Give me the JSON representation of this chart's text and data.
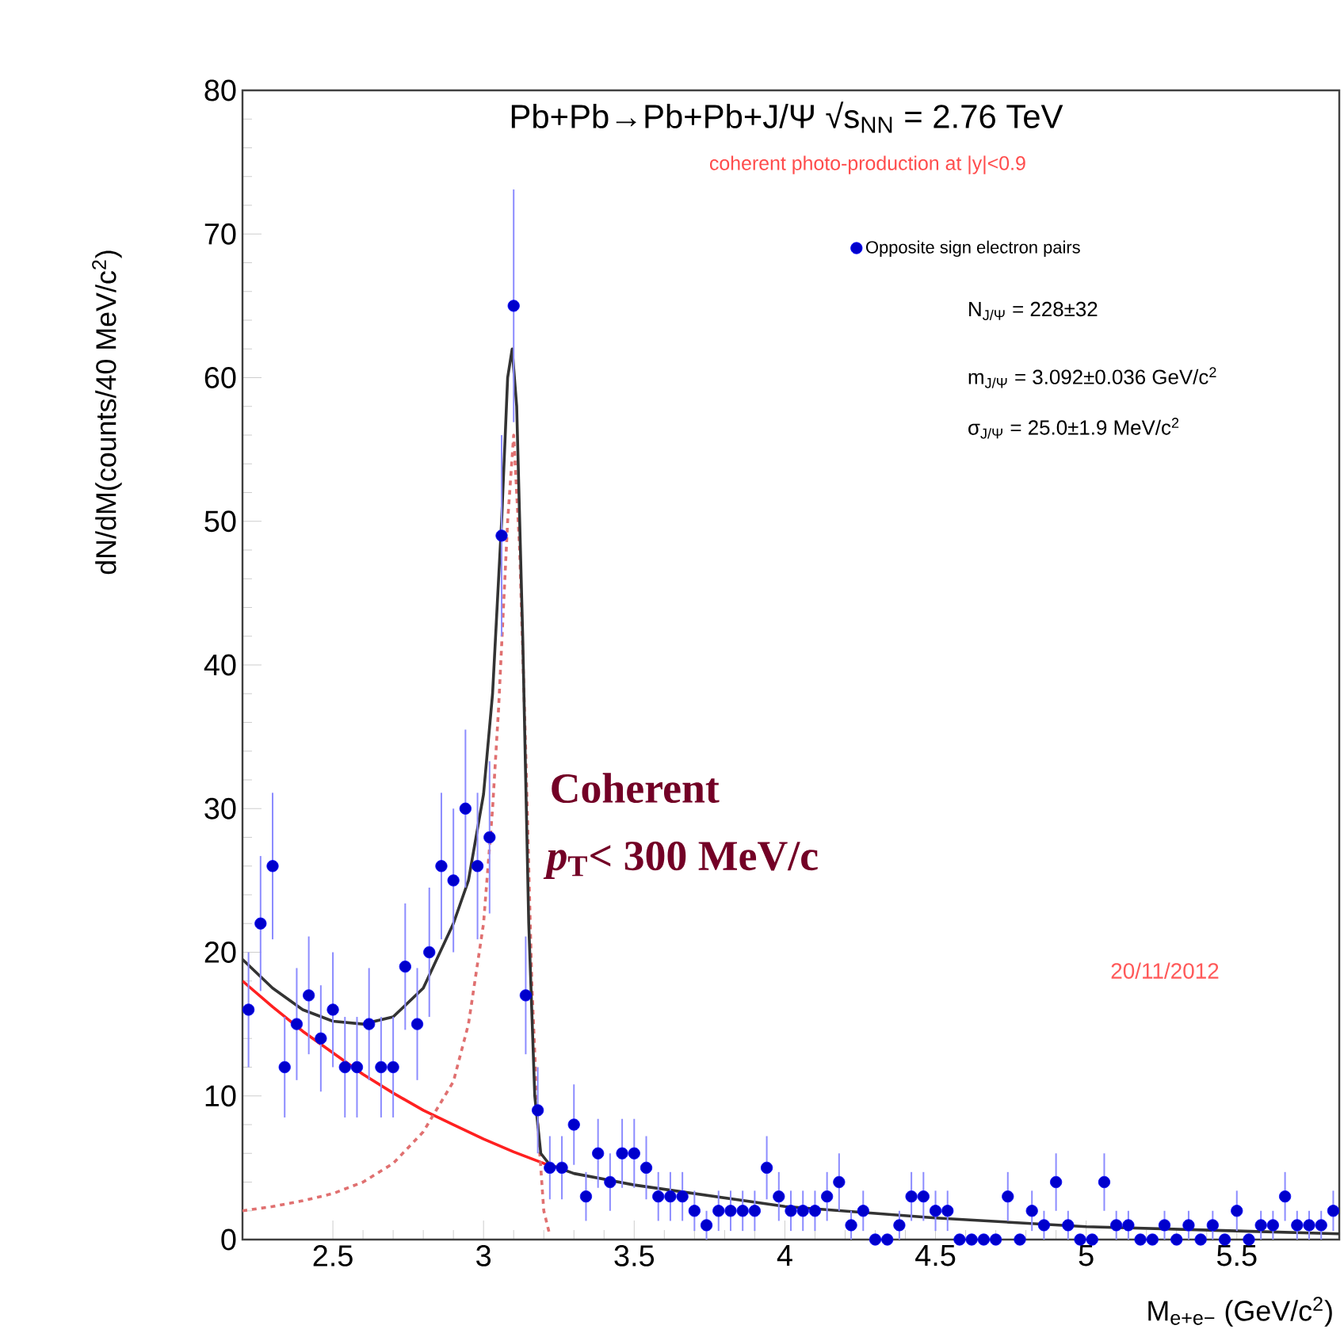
{
  "chart_data": {
    "type": "scatter",
    "title": "Pb+Pb→Pb+Pb+J/Ψ √s$_{NN}$ = 2.76 TeV",
    "subtitle": "coherent photo-production at |y|<0.9",
    "xlabel": "M$_{e+e−}$ (GeV/c$^{2}$)",
    "ylabel": "dN/dM(counts/40 MeV/c$^{2}$)",
    "xlim": [
      2.2,
      5.84
    ],
    "ylim": [
      0,
      80
    ],
    "xticks": [
      2.5,
      3,
      3.5,
      4,
      4.5,
      5,
      5.5
    ],
    "yticks": [
      0,
      10,
      20,
      30,
      40,
      50,
      60,
      70,
      80
    ],
    "legend": "top right",
    "grid": false,
    "annotations": [
      "N$_{J/Ψ}$ = 228±32",
      "m$_{J/Ψ}$ = 3.092±0.036 GeV/c$^{2}$",
      "σ$_{J/Ψ}$ = 25.0±1.9 MeV/c$^{2}$",
      "Coherent",
      "*p*$_{T}$< 300 MeV/c",
      "20/11/2012"
    ],
    "series": [
      {
        "type": "line",
        "color": "#ff2020",
        "line_style": "solid",
        "marker": "none",
        "x": [
          2.2,
          2.3,
          2.4,
          2.5,
          2.6,
          2.7,
          2.8,
          2.9,
          3.0,
          3.1,
          3.2,
          3.25
        ],
        "values": [
          18,
          16.2,
          14.5,
          13,
          11.5,
          10.2,
          9,
          8,
          7,
          6.1,
          5.3,
          5
        ]
      },
      {
        "type": "line",
        "color": "#e07070",
        "line_style": "dashed",
        "marker": "none",
        "x": [
          2.2,
          2.3,
          2.4,
          2.5,
          2.6,
          2.7,
          2.8,
          2.9,
          2.95,
          3.0,
          3.03,
          3.05,
          3.08,
          3.1,
          3.12,
          3.14,
          3.16,
          3.18,
          3.2,
          3.22
        ],
        "values": [
          2,
          2.3,
          2.7,
          3.2,
          4,
          5.3,
          7.5,
          11,
          15,
          22,
          30,
          37,
          50,
          56,
          48,
          34,
          18,
          8,
          2,
          0.3
        ]
      },
      {
        "type": "line",
        "color": "#333333",
        "line_style": "solid",
        "marker": "none",
        "x": [
          2.2,
          2.3,
          2.4,
          2.5,
          2.6,
          2.7,
          2.8,
          2.9,
          2.95,
          3.0,
          3.03,
          3.06,
          3.08,
          3.095,
          3.11,
          3.13,
          3.15,
          3.17,
          3.19,
          3.22,
          3.3,
          3.5,
          4.0,
          4.5,
          5.0,
          5.5,
          5.84
        ],
        "values": [
          19.5,
          17.5,
          16,
          15.2,
          15,
          15.5,
          17.5,
          22,
          25,
          31,
          38,
          50,
          60,
          62,
          58,
          42,
          22,
          10,
          6,
          5.2,
          4.6,
          3.8,
          2.3,
          1.5,
          0.9,
          0.6,
          0.4
        ]
      },
      {
        "name": "Opposite sign electron pairs",
        "color": "#0000ff",
        "marker": "circle",
        "x": [
          2.22,
          2.26,
          2.3,
          2.34,
          2.38,
          2.42,
          2.46,
          2.5,
          2.54,
          2.58,
          2.62,
          2.66,
          2.7,
          2.74,
          2.78,
          2.82,
          2.86,
          2.9,
          2.94,
          2.98,
          3.02,
          3.06,
          3.1,
          3.14,
          3.18,
          3.22,
          3.26,
          3.3,
          3.34,
          3.38,
          3.42,
          3.46,
          3.5,
          3.54,
          3.58,
          3.62,
          3.66,
          3.7,
          3.74,
          3.78,
          3.82,
          3.86,
          3.9,
          3.94,
          3.98,
          4.02,
          4.06,
          4.1,
          4.14,
          4.18,
          4.22,
          4.26,
          4.3,
          4.34,
          4.38,
          4.42,
          4.46,
          4.5,
          4.54,
          4.58,
          4.62,
          4.66,
          4.7,
          4.74,
          4.78,
          4.82,
          4.86,
          4.9,
          4.94,
          4.98,
          5.02,
          5.06,
          5.1,
          5.14,
          5.18,
          5.22,
          5.26,
          5.3,
          5.34,
          5.38,
          5.42,
          5.46,
          5.5,
          5.54,
          5.58,
          5.62,
          5.66,
          5.7,
          5.74,
          5.78,
          5.82
        ],
        "values": [
          16,
          22,
          26,
          12,
          15,
          17,
          14,
          16,
          12,
          12,
          15,
          12,
          12,
          19,
          15,
          20,
          26,
          25,
          30,
          26,
          28,
          49,
          65,
          17,
          9,
          5,
          5,
          8,
          3,
          6,
          4,
          6,
          6,
          5,
          3,
          3,
          3,
          2,
          1,
          2,
          2,
          2,
          2,
          5,
          3,
          2,
          2,
          2,
          3,
          4,
          1,
          2,
          0,
          0,
          1,
          3,
          3,
          2,
          2,
          0,
          0,
          0,
          0,
          3,
          0,
          2,
          1,
          4,
          1,
          0,
          0,
          4,
          1,
          1,
          0,
          0,
          1,
          0,
          1,
          0,
          1,
          0,
          2,
          0,
          1,
          1,
          3,
          1,
          1,
          1,
          2
        ],
        "errors": [
          4,
          4.7,
          5.1,
          3.5,
          3.9,
          4.1,
          3.7,
          4,
          3.5,
          3.5,
          3.9,
          3.5,
          3.5,
          4.4,
          3.9,
          4.5,
          5.1,
          5,
          5.5,
          5.1,
          5.3,
          7,
          8.1,
          4.1,
          3,
          2.2,
          2.2,
          2.8,
          1.7,
          2.4,
          2,
          2.4,
          2.4,
          2.2,
          1.7,
          1.7,
          1.7,
          1.4,
          1,
          1.4,
          1.4,
          1.4,
          1.4,
          2.2,
          1.7,
          1.4,
          1.4,
          1.4,
          1.7,
          2,
          1,
          1.4,
          null,
          null,
          1,
          1.7,
          1.7,
          1.4,
          1.4,
          null,
          null,
          null,
          null,
          1.7,
          null,
          1.4,
          1,
          2,
          1,
          null,
          null,
          2,
          1,
          1,
          null,
          null,
          1,
          null,
          1,
          null,
          1,
          null,
          1.4,
          null,
          1,
          1,
          1.7,
          1,
          1,
          1,
          1.4
        ]
      }
    ]
  }
}
